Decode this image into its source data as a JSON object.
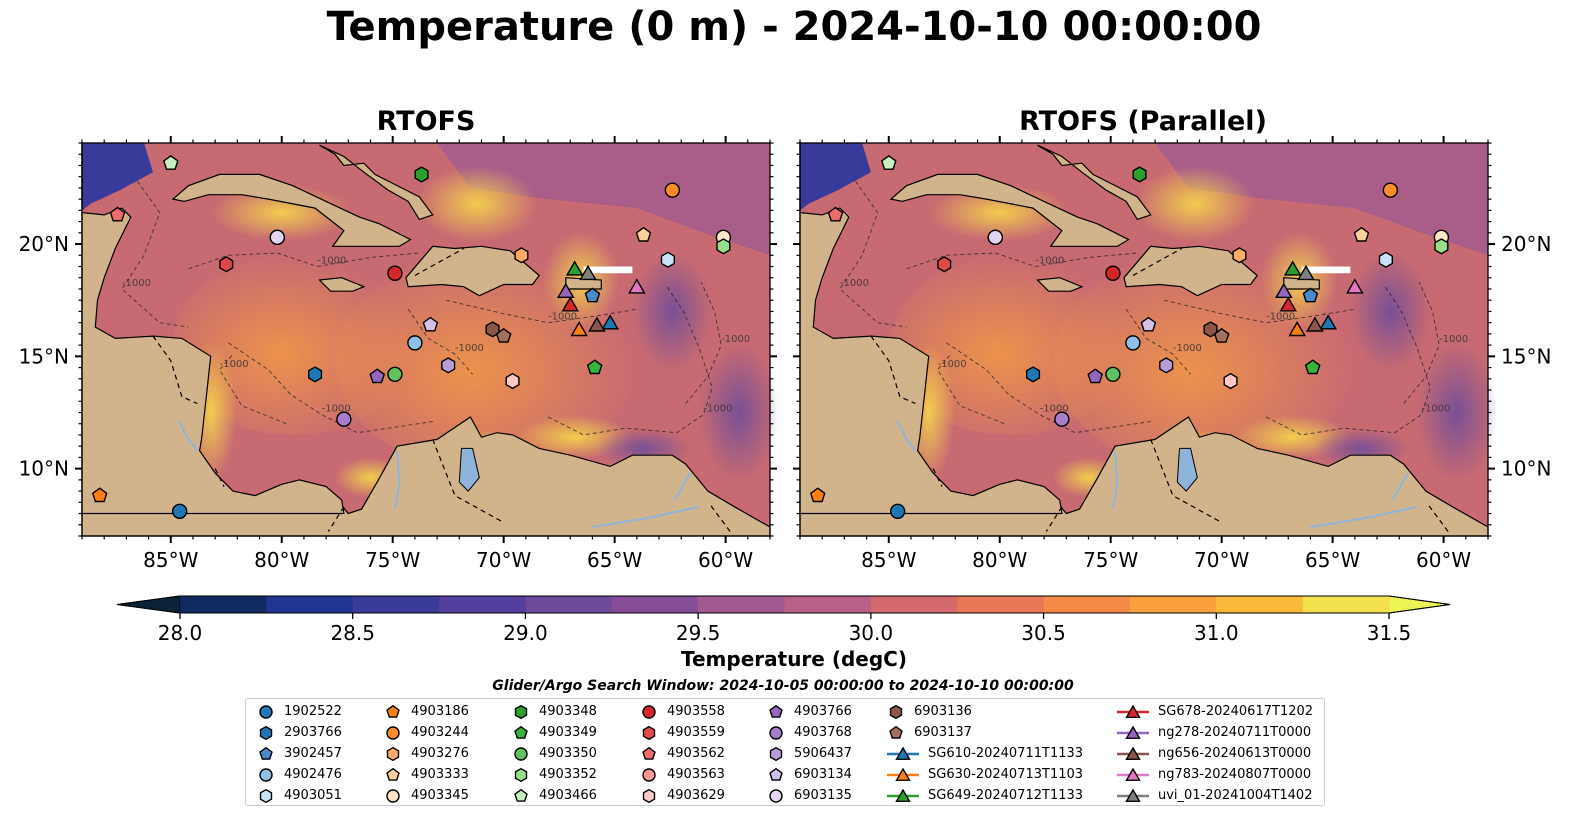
{
  "title": "Temperature (0 m) - 2024-10-10 00:00:00",
  "panels": [
    {
      "title": "RTOFS"
    },
    {
      "title": "RTOFS (Parallel)"
    }
  ],
  "map": {
    "lon_range": [
      -89,
      -58
    ],
    "lat_range": [
      7,
      24.5
    ],
    "x_ticks": [
      -85,
      -80,
      -75,
      -70,
      -65,
      -60
    ],
    "x_tick_labels": [
      "85°W",
      "80°W",
      "75°W",
      "70°W",
      "65°W",
      "60°W"
    ],
    "y_ticks": [
      10,
      15,
      20
    ],
    "y_tick_labels": [
      "10°N",
      "15°N",
      "20°N"
    ],
    "bathymetry_contour_label": "-1000",
    "colors": {
      "land": "#d2b48c",
      "lakes_rivers": "#8fb4d9",
      "ocean_base": "#c86a72"
    }
  },
  "colorbar": {
    "label": "Temperature (degC)",
    "min": 28.0,
    "max": 31.5,
    "step": 0.25,
    "ticks": [
      "28.0",
      "28.5",
      "29.0",
      "29.5",
      "30.0",
      "30.5",
      "31.0",
      "31.5"
    ],
    "extend": "both",
    "colors": [
      "#0a2338",
      "#0f2a5e",
      "#203491",
      "#3a3a9b",
      "#523e9c",
      "#6c4a99",
      "#854d97",
      "#a15a8f",
      "#b96086",
      "#d3696c",
      "#e87757",
      "#f48a45",
      "#f99f3e",
      "#fbb93b",
      "#f2e14c",
      "#eef356"
    ]
  },
  "search_window": "Glider/Argo Search Window: 2024-10-05 00:00:00 to 2024-10-10 00:00:00",
  "legend": [
    {
      "label": "1902522",
      "marker": "circle",
      "color": "#1f77b4",
      "lon": -84.6,
      "lat": 8.1
    },
    {
      "label": "2903766",
      "marker": "hexagon",
      "color": "#1f77b4",
      "lon": -78.5,
      "lat": 14.2
    },
    {
      "label": "3902457",
      "marker": "pentagon",
      "color": "#4a8ac8",
      "lon": -66.0,
      "lat": 17.7
    },
    {
      "label": "4902476",
      "marker": "circle",
      "color": "#8ec0ea",
      "lon": -74.0,
      "lat": 15.6
    },
    {
      "label": "4903051",
      "marker": "hexagon",
      "color": "#c9e3f6",
      "lon": -62.6,
      "lat": 19.3
    },
    {
      "label": "4903186",
      "marker": "pentagon",
      "color": "#ff7f0e",
      "lon": -88.2,
      "lat": 8.8
    },
    {
      "label": "4903244",
      "marker": "circle",
      "color": "#ff8c2a",
      "lon": -62.4,
      "lat": 22.4
    },
    {
      "label": "4903276",
      "marker": "hexagon",
      "color": "#ffaa66",
      "lon": -69.2,
      "lat": 19.5
    },
    {
      "label": "4903333",
      "marker": "pentagon",
      "color": "#ffcf99",
      "lon": -63.7,
      "lat": 20.4
    },
    {
      "label": "4903345",
      "marker": "circle",
      "color": "#ffe5c6",
      "lon": -60.1,
      "lat": 20.3
    },
    {
      "label": "4903348",
      "marker": "hexagon",
      "color": "#2ca02c",
      "lon": -73.7,
      "lat": 23.1
    },
    {
      "label": "4903349",
      "marker": "pentagon",
      "color": "#39b339",
      "lon": -65.9,
      "lat": 14.5
    },
    {
      "label": "4903350",
      "marker": "circle",
      "color": "#5ec25e",
      "lon": -74.9,
      "lat": 14.2
    },
    {
      "label": "4903352",
      "marker": "hexagon",
      "color": "#98df8a",
      "lon": -60.1,
      "lat": 19.9
    },
    {
      "label": "4903466",
      "marker": "pentagon",
      "color": "#c8f0bf",
      "lon": -85.0,
      "lat": 23.6
    },
    {
      "label": "4903558",
      "marker": "circle",
      "color": "#d62728",
      "lon": -74.9,
      "lat": 18.7
    },
    {
      "label": "4903559",
      "marker": "hexagon",
      "color": "#e0494a",
      "lon": -82.5,
      "lat": 19.1
    },
    {
      "label": "4903562",
      "marker": "pentagon",
      "color": "#ee6b6b",
      "lon": -87.4,
      "lat": 21.3
    },
    {
      "label": "4903563",
      "marker": "circle",
      "color": "#ff9896",
      "lon": -80.2,
      "lat": 20.3
    },
    {
      "label": "4903629",
      "marker": "hexagon",
      "color": "#ffc8c6",
      "lon": -69.6,
      "lat": 13.9
    },
    {
      "label": "4903766",
      "marker": "pentagon",
      "color": "#9467bd",
      "lon": -75.7,
      "lat": 14.1
    },
    {
      "label": "4903768",
      "marker": "circle",
      "color": "#a47fcb",
      "lon": -77.2,
      "lat": 12.2
    },
    {
      "label": "5906437",
      "marker": "hexagon",
      "color": "#b79cd8",
      "lon": -72.5,
      "lat": 14.6
    },
    {
      "label": "6903134",
      "marker": "pentagon",
      "color": "#d2c2ea",
      "lon": -73.3,
      "lat": 16.4
    },
    {
      "label": "6903135",
      "marker": "circle",
      "color": "#e2d5f2",
      "lon": -80.2,
      "lat": 20.3
    },
    {
      "label": "6903136",
      "marker": "hexagon",
      "color": "#8c564b",
      "lon": -70.5,
      "lat": 16.2
    },
    {
      "label": "6903137",
      "marker": "pentagon",
      "color": "#a4715f",
      "lon": -70.0,
      "lat": 15.9
    },
    {
      "label": "SG610-20240711T1133",
      "marker": "triangle",
      "line": true,
      "color": "#1f77b4",
      "lon": -65.2,
      "lat": 16.5
    },
    {
      "label": "SG630-20240713T1103",
      "marker": "triangle",
      "line": true,
      "color": "#ff7f0e",
      "lon": -66.6,
      "lat": 16.2
    },
    {
      "label": "SG649-20240712T1133",
      "marker": "triangle",
      "line": true,
      "color": "#2ca02c",
      "lon": -66.8,
      "lat": 18.9
    },
    {
      "label": "SG678-20240617T1202",
      "marker": "triangle",
      "line": true,
      "color": "#d62728",
      "lon": -67.0,
      "lat": 17.3
    },
    {
      "label": "ng278-20240711T0000",
      "marker": "triangle",
      "line": true,
      "color": "#9467bd",
      "lon": -67.2,
      "lat": 17.9
    },
    {
      "label": "ng656-20240613T0000",
      "marker": "triangle",
      "line": true,
      "color": "#8c564b",
      "lon": -65.8,
      "lat": 16.4
    },
    {
      "label": "ng783-20240807T0000",
      "marker": "triangle",
      "line": true,
      "color": "#e377c2",
      "lon": -64.0,
      "lat": 18.1
    },
    {
      "label": "uvi_01-20241004T1402",
      "marker": "triangle",
      "line": true,
      "color": "#7f7f7f",
      "lon": -66.2,
      "lat": 18.7
    }
  ]
}
